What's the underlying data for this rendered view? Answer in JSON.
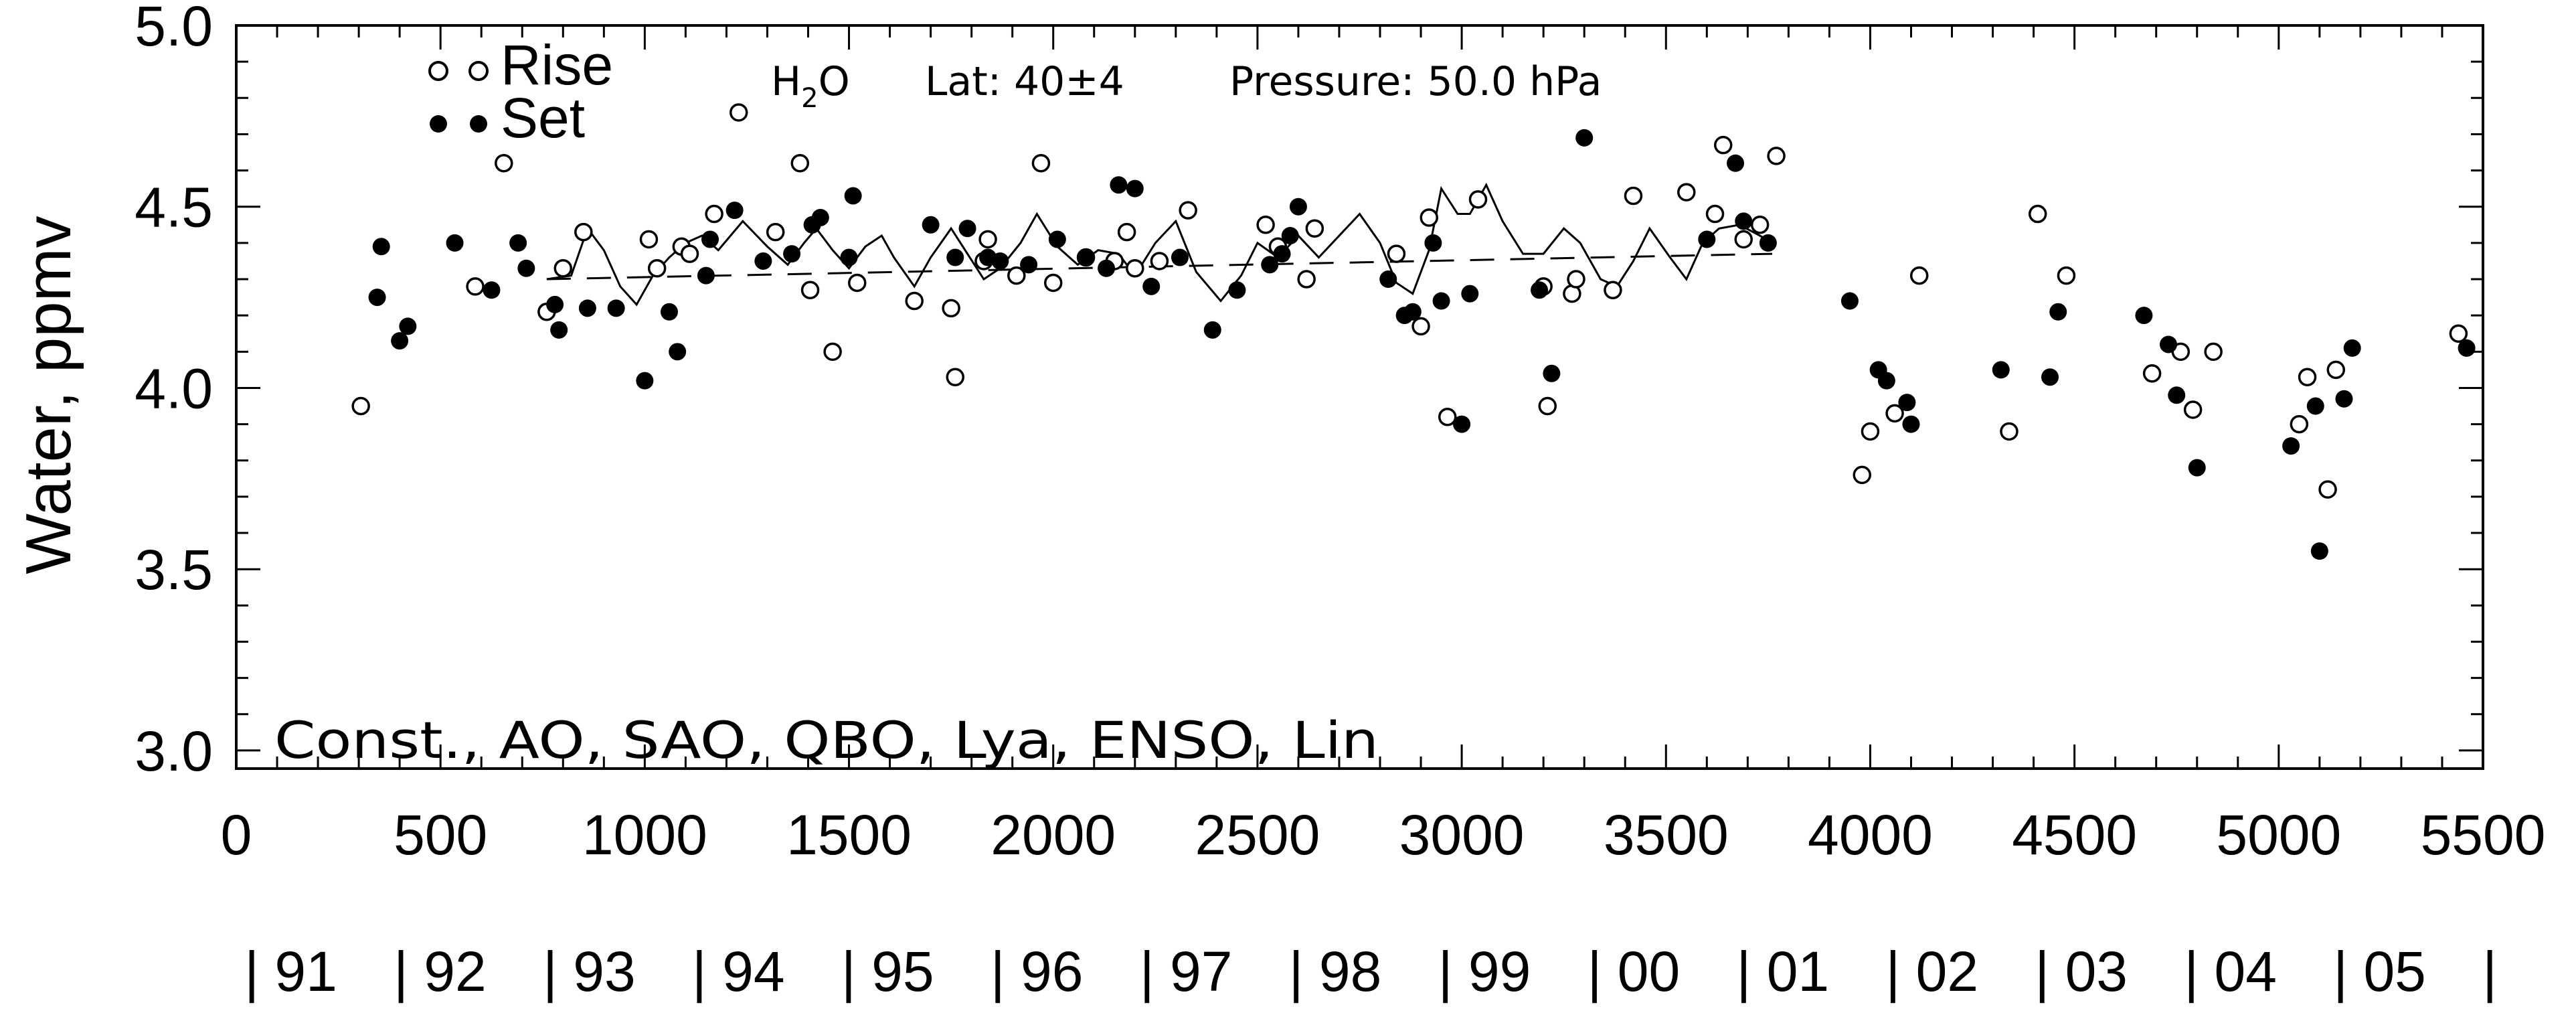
{
  "chart_data": {
    "type": "scatter",
    "header": {
      "species_main": "H",
      "species_sub": "2",
      "species_tail": "O",
      "lat": "Lat: 40±4",
      "pressure": "Pressure: 50.0  hPa"
    },
    "ylabel": "Water, ppmv",
    "model_terms": "Const., AO, SAO, QBO, Lya, ENSO, Lin",
    "xlim": [
      0,
      5500
    ],
    "ylim": [
      2.95,
      5.0
    ],
    "x_ticks": [
      "0",
      "500",
      "1000",
      "1500",
      "2000",
      "2500",
      "3000",
      "3500",
      "4000",
      "4500",
      "5000",
      "5500"
    ],
    "y_ticks": [
      "3.0",
      "3.5",
      "4.0",
      "4.5",
      "5.0"
    ],
    "year_labels": [
      "| 91",
      "| 92",
      "| 93",
      "| 94",
      "| 95",
      "| 96",
      "| 97",
      "| 98",
      "| 99",
      "| 00",
      "| 01",
      "| 02",
      "| 03",
      "| 04",
      "| 05",
      "|"
    ],
    "legend": [
      {
        "label": "Rise",
        "marker": "open-circle"
      },
      {
        "label": "Set",
        "marker": "filled-circle"
      }
    ],
    "series": [
      {
        "name": "Rise",
        "marker": "open-circle",
        "points": [
          [
            305,
            3.95
          ],
          [
            585,
            4.28
          ],
          [
            655,
            4.62
          ],
          [
            760,
            4.21
          ],
          [
            800,
            4.33
          ],
          [
            850,
            4.43
          ],
          [
            1010,
            4.41
          ],
          [
            1030,
            4.33
          ],
          [
            1090,
            4.39
          ],
          [
            1110,
            4.37
          ],
          [
            1170,
            4.48
          ],
          [
            1230,
            4.76
          ],
          [
            1320,
            4.43
          ],
          [
            1380,
            4.62
          ],
          [
            1405,
            4.27
          ],
          [
            1460,
            4.1
          ],
          [
            1520,
            4.29
          ],
          [
            1660,
            4.24
          ],
          [
            1750,
            4.22
          ],
          [
            1760,
            4.03
          ],
          [
            1830,
            4.35
          ],
          [
            1840,
            4.41
          ],
          [
            1910,
            4.31
          ],
          [
            1970,
            4.62
          ],
          [
            2000,
            4.29
          ],
          [
            2080,
            4.36
          ],
          [
            2150,
            4.35
          ],
          [
            2180,
            4.43
          ],
          [
            2200,
            4.33
          ],
          [
            2260,
            4.35
          ],
          [
            2330,
            4.49
          ],
          [
            2520,
            4.45
          ],
          [
            2550,
            4.39
          ],
          [
            2620,
            4.3
          ],
          [
            2640,
            4.44
          ],
          [
            2840,
            4.37
          ],
          [
            2900,
            4.17
          ],
          [
            2920,
            4.47
          ],
          [
            2965,
            3.92
          ],
          [
            3040,
            4.52
          ],
          [
            3200,
            4.28
          ],
          [
            3210,
            3.95
          ],
          [
            3270,
            4.26
          ],
          [
            3280,
            4.3
          ],
          [
            3370,
            4.27
          ],
          [
            3420,
            4.53
          ],
          [
            3550,
            4.54
          ],
          [
            3620,
            4.48
          ],
          [
            3640,
            4.67
          ],
          [
            3690,
            4.41
          ],
          [
            3730,
            4.45
          ],
          [
            3770,
            4.64
          ],
          [
            3980,
            3.76
          ],
          [
            4000,
            3.88
          ],
          [
            4060,
            3.93
          ],
          [
            4120,
            4.31
          ],
          [
            4340,
            3.88
          ],
          [
            4410,
            4.48
          ],
          [
            4480,
            4.31
          ],
          [
            4690,
            4.04
          ],
          [
            4760,
            4.1
          ],
          [
            4790,
            3.94
          ],
          [
            4840,
            4.1
          ],
          [
            5050,
            3.9
          ],
          [
            5070,
            4.03
          ],
          [
            5120,
            3.72
          ],
          [
            5140,
            4.05
          ],
          [
            5440,
            4.15
          ]
        ]
      },
      {
        "name": "Set",
        "marker": "filled-circle",
        "points": [
          [
            345,
            4.25
          ],
          [
            355,
            4.39
          ],
          [
            400,
            4.13
          ],
          [
            420,
            4.17
          ],
          [
            535,
            4.4
          ],
          [
            625,
            4.27
          ],
          [
            690,
            4.4
          ],
          [
            710,
            4.33
          ],
          [
            780,
            4.23
          ],
          [
            790,
            4.16
          ],
          [
            860,
            4.22
          ],
          [
            930,
            4.22
          ],
          [
            1000,
            4.02
          ],
          [
            1060,
            4.21
          ],
          [
            1080,
            4.1
          ],
          [
            1150,
            4.31
          ],
          [
            1160,
            4.41
          ],
          [
            1220,
            4.49
          ],
          [
            1290,
            4.35
          ],
          [
            1360,
            4.37
          ],
          [
            1410,
            4.45
          ],
          [
            1430,
            4.47
          ],
          [
            1500,
            4.36
          ],
          [
            1510,
            4.53
          ],
          [
            1700,
            4.45
          ],
          [
            1760,
            4.36
          ],
          [
            1790,
            4.44
          ],
          [
            1840,
            4.36
          ],
          [
            1870,
            4.35
          ],
          [
            1940,
            4.34
          ],
          [
            2010,
            4.41
          ],
          [
            2080,
            4.36
          ],
          [
            2130,
            4.33
          ],
          [
            2160,
            4.56
          ],
          [
            2200,
            4.55
          ],
          [
            2240,
            4.28
          ],
          [
            2310,
            4.36
          ],
          [
            2390,
            4.16
          ],
          [
            2450,
            4.27
          ],
          [
            2530,
            4.34
          ],
          [
            2560,
            4.37
          ],
          [
            2580,
            4.42
          ],
          [
            2600,
            4.5
          ],
          [
            2820,
            4.3
          ],
          [
            2860,
            4.2
          ],
          [
            2880,
            4.21
          ],
          [
            2930,
            4.4
          ],
          [
            2950,
            4.24
          ],
          [
            3000,
            3.9
          ],
          [
            3020,
            4.26
          ],
          [
            3190,
            4.27
          ],
          [
            3220,
            4.04
          ],
          [
            3300,
            4.69
          ],
          [
            3600,
            4.41
          ],
          [
            3670,
            4.62
          ],
          [
            3690,
            4.46
          ],
          [
            3750,
            4.4
          ],
          [
            3950,
            4.24
          ],
          [
            4020,
            4.05
          ],
          [
            4040,
            4.02
          ],
          [
            4090,
            3.96
          ],
          [
            4100,
            3.9
          ],
          [
            4320,
            4.05
          ],
          [
            4440,
            4.03
          ],
          [
            4460,
            4.21
          ],
          [
            4670,
            4.2
          ],
          [
            4730,
            4.12
          ],
          [
            4750,
            3.98
          ],
          [
            4800,
            3.78
          ],
          [
            5030,
            3.84
          ],
          [
            5090,
            3.95
          ],
          [
            5100,
            3.55
          ],
          [
            5160,
            3.97
          ],
          [
            5180,
            4.11
          ],
          [
            5460,
            4.11
          ]
        ]
      },
      {
        "name": "fit",
        "style": "solid-line",
        "points": [
          [
            760,
            4.3
          ],
          [
            820,
            4.31
          ],
          [
            860,
            4.44
          ],
          [
            900,
            4.38
          ],
          [
            940,
            4.28
          ],
          [
            980,
            4.23
          ],
          [
            1020,
            4.31
          ],
          [
            1060,
            4.36
          ],
          [
            1100,
            4.4
          ],
          [
            1140,
            4.42
          ],
          [
            1180,
            4.38
          ],
          [
            1240,
            4.46
          ],
          [
            1300,
            4.39
          ],
          [
            1350,
            4.34
          ],
          [
            1390,
            4.4
          ],
          [
            1420,
            4.44
          ],
          [
            1460,
            4.38
          ],
          [
            1500,
            4.33
          ],
          [
            1540,
            4.39
          ],
          [
            1580,
            4.42
          ],
          [
            1610,
            4.36
          ],
          [
            1660,
            4.28
          ],
          [
            1700,
            4.36
          ],
          [
            1750,
            4.44
          ],
          [
            1790,
            4.37
          ],
          [
            1830,
            4.3
          ],
          [
            1870,
            4.33
          ],
          [
            1920,
            4.4
          ],
          [
            1960,
            4.48
          ],
          [
            2010,
            4.39
          ],
          [
            2060,
            4.34
          ],
          [
            2110,
            4.38
          ],
          [
            2160,
            4.37
          ],
          [
            2200,
            4.31
          ],
          [
            2250,
            4.4
          ],
          [
            2300,
            4.46
          ],
          [
            2350,
            4.32
          ],
          [
            2410,
            4.24
          ],
          [
            2460,
            4.31
          ],
          [
            2500,
            4.4
          ],
          [
            2550,
            4.36
          ],
          [
            2600,
            4.42
          ],
          [
            2650,
            4.36
          ],
          [
            2700,
            4.42
          ],
          [
            2750,
            4.48
          ],
          [
            2800,
            4.4
          ],
          [
            2840,
            4.29
          ],
          [
            2880,
            4.26
          ],
          [
            2920,
            4.38
          ],
          [
            2950,
            4.55
          ],
          [
            2990,
            4.48
          ],
          [
            3020,
            4.48
          ],
          [
            3060,
            4.56
          ],
          [
            3100,
            4.46
          ],
          [
            3150,
            4.37
          ],
          [
            3200,
            4.37
          ],
          [
            3250,
            4.44
          ],
          [
            3290,
            4.4
          ],
          [
            3340,
            4.3
          ],
          [
            3380,
            4.28
          ],
          [
            3420,
            4.35
          ],
          [
            3460,
            4.44
          ],
          [
            3510,
            4.36
          ],
          [
            3550,
            4.3
          ],
          [
            3590,
            4.4
          ],
          [
            3630,
            4.44
          ],
          [
            3680,
            4.45
          ],
          [
            3730,
            4.42
          ],
          [
            3760,
            4.4
          ]
        ]
      },
      {
        "name": "linear trend",
        "style": "dashed-line",
        "points": [
          [
            760,
            4.3
          ],
          [
            3760,
            4.37
          ]
        ]
      }
    ]
  }
}
